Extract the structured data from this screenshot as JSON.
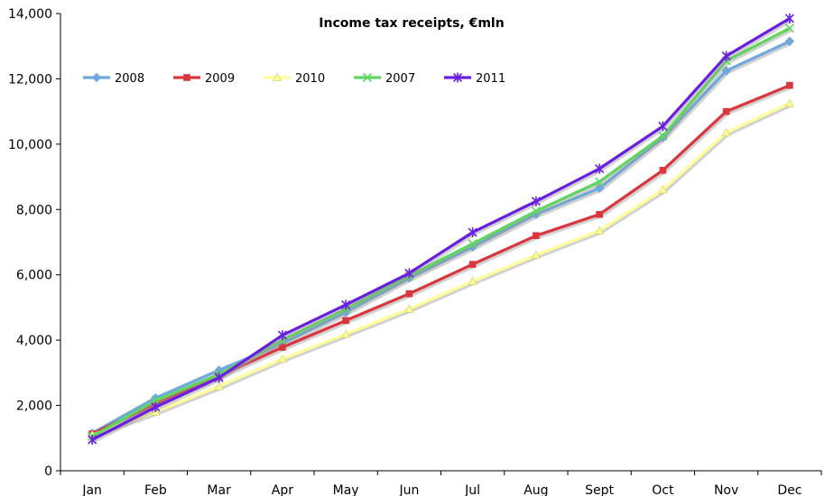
{
  "chart_data": {
    "type": "line",
    "title": "Income tax receipts, €mln",
    "xlabel": "",
    "ylabel": "",
    "categories": [
      "Jan",
      "Feb",
      "Mar",
      "Apr",
      "May",
      "Jun",
      "Jul",
      "Aug",
      "Sept",
      "Oct",
      "Nov",
      "Dec"
    ],
    "ylim": [
      0,
      14000
    ],
    "yticks": [
      0,
      2000,
      4000,
      6000,
      8000,
      10000,
      12000,
      14000
    ],
    "ytick_labels": [
      "0",
      "2,000",
      "4,000",
      "6,000",
      "8,000",
      "10,000",
      "12,000",
      "14,000"
    ],
    "grid": false,
    "legend_position": "top-left",
    "series": [
      {
        "name": "2008",
        "color": "#6fa8dc",
        "marker": "diamond",
        "values": [
          1150,
          2230,
          3080,
          3900,
          4850,
          5900,
          6850,
          7850,
          8650,
          10200,
          12250,
          13150
        ]
      },
      {
        "name": "2009",
        "color": "#d9363e",
        "marker": "square",
        "values": [
          1130,
          2050,
          2900,
          3780,
          4600,
          5420,
          6320,
          7200,
          7850,
          9200,
          11000,
          11800
        ]
      },
      {
        "name": "2010",
        "color": "#ffff99",
        "marker": "triangle",
        "values": [
          1100,
          1800,
          2580,
          3420,
          4180,
          4950,
          5800,
          6600,
          7350,
          8600,
          10350,
          11250
        ]
      },
      {
        "name": "2007",
        "color": "#5fd65f",
        "marker": "x",
        "values": [
          1050,
          2150,
          2950,
          4000,
          4950,
          5970,
          6950,
          7950,
          8850,
          10250,
          12550,
          13550
        ]
      },
      {
        "name": "2011",
        "color": "#6a1fe0",
        "marker": "star",
        "values": [
          950,
          1950,
          2850,
          4150,
          5080,
          6050,
          7300,
          8250,
          9250,
          10550,
          12700,
          13850
        ]
      }
    ]
  }
}
